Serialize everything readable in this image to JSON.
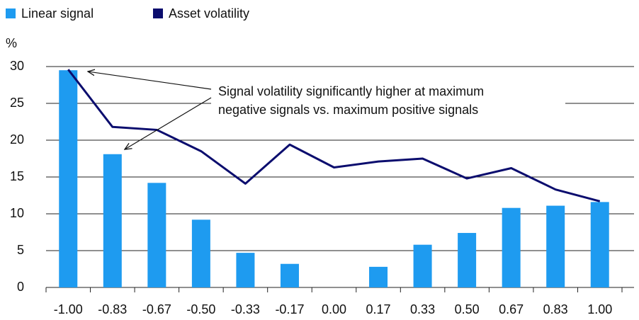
{
  "chart_data": {
    "type": "bar_line",
    "categories": [
      "-1.00",
      "-0.83",
      "-0.67",
      "-0.50",
      "-0.33",
      "-0.17",
      "0.00",
      "0.17",
      "0.33",
      "0.50",
      "0.67",
      "0.83",
      "1.00"
    ],
    "series": [
      {
        "name": "Linear signal",
        "type": "bar",
        "color": "#1e9bf0",
        "values": [
          29.5,
          18.1,
          14.2,
          9.2,
          4.7,
          3.2,
          0,
          2.8,
          5.8,
          7.4,
          10.8,
          11.1,
          11.6
        ]
      },
      {
        "name": "Asset volatility",
        "type": "line",
        "color": "#0b0d6e",
        "values": [
          29.6,
          21.8,
          21.4,
          18.5,
          14.1,
          19.4,
          16.3,
          17.1,
          17.5,
          14.8,
          16.2,
          13.3,
          11.7
        ]
      }
    ],
    "y_unit": "%",
    "ylim": [
      0,
      30
    ],
    "yticks": [
      0,
      5,
      10,
      15,
      20,
      25,
      30
    ],
    "grid": true,
    "annotation": [
      "Signal volatility significantly higher at maximum",
      "negative signals vs. maximum positive signals"
    ]
  }
}
